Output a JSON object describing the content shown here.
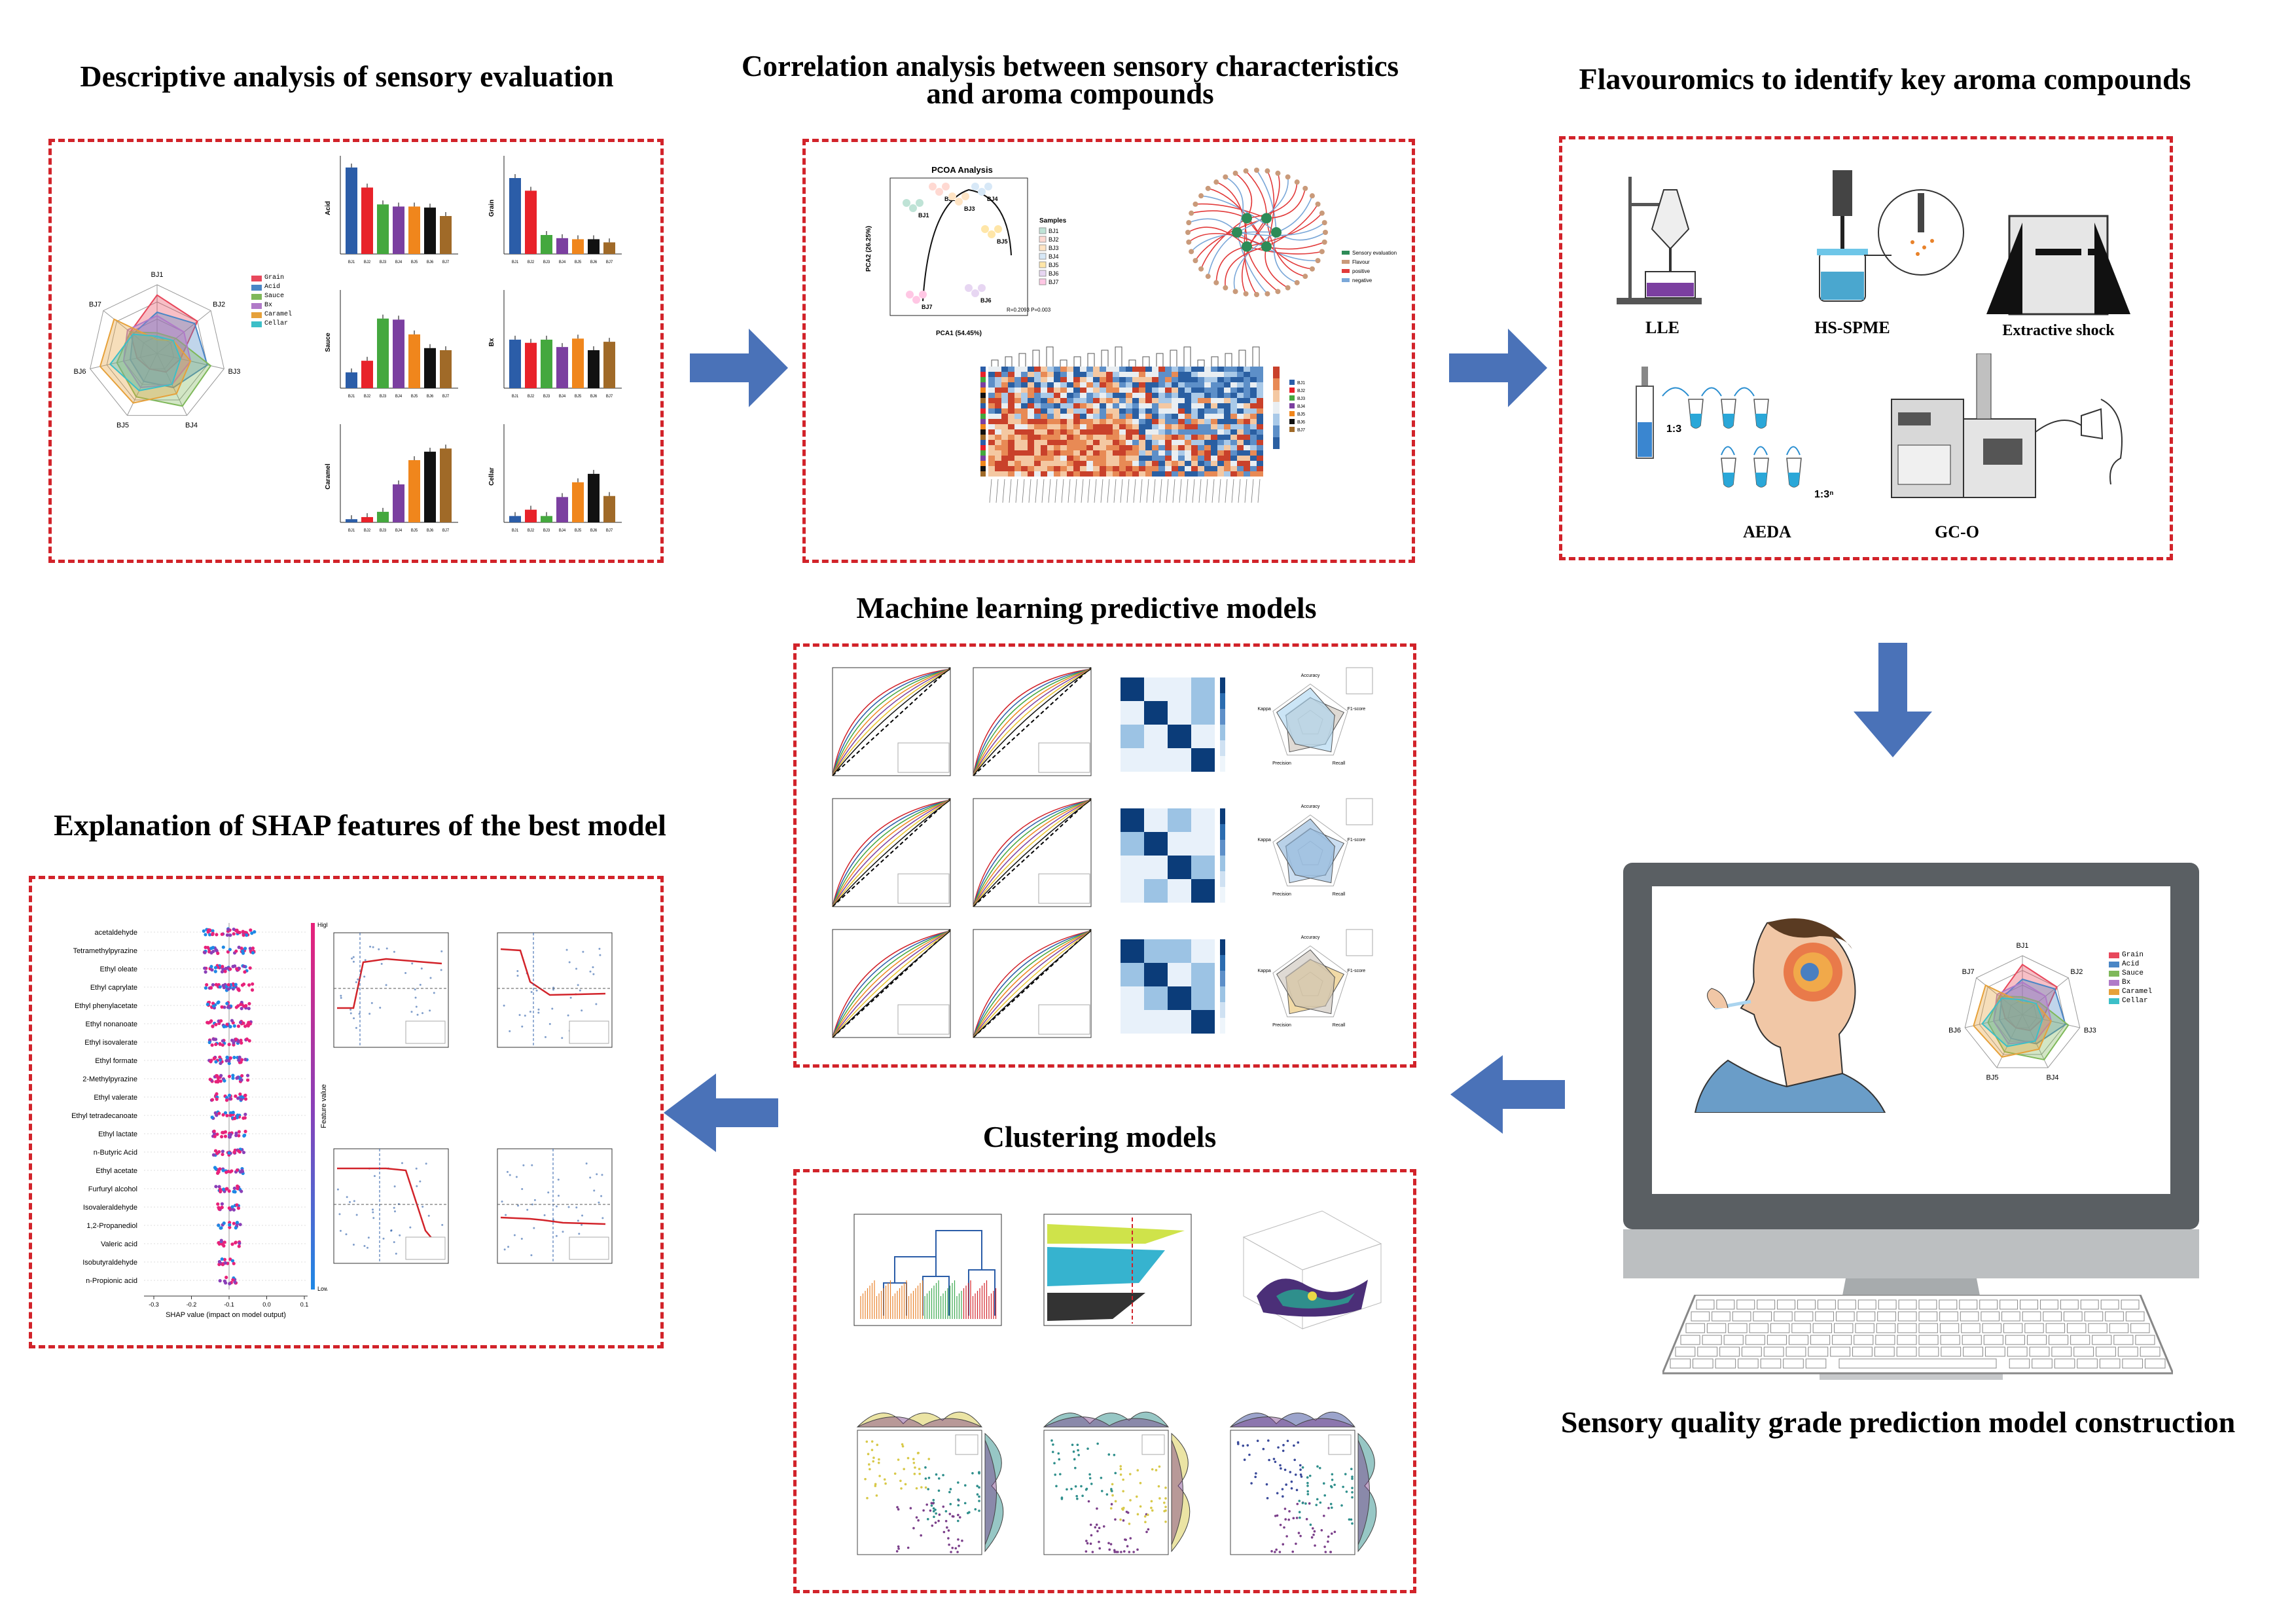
{
  "titles": {
    "sensory": "Descriptive analysis of sensory evaluation",
    "correlation": "Correlation analysis between sensory characteristics and aroma compounds",
    "flavouromics": "Flavouromics to identify key aroma compounds",
    "ml": "Machine learning predictive models",
    "shap": "Explanation of SHAP features of the best model",
    "clustering": "Clustering models",
    "prediction": "Sensory quality grade prediction model construction"
  },
  "flavouromics": {
    "lle": "LLE",
    "hs_spme": "HS-SPME",
    "extractive_shock": "Extractive shock",
    "aeda": "AEDA",
    "gc_o": "GC-O",
    "ratio1": "1:3",
    "ratio2": "1:3ⁿ"
  },
  "samples": [
    "BJ1",
    "BJ2",
    "BJ3",
    "BJ4",
    "BJ5",
    "BJ6",
    "BJ7"
  ],
  "radar_legend": [
    "Grain",
    "Acid",
    "Sauce",
    "Bx",
    "Caramel",
    "Cellar"
  ],
  "colors": {
    "grain": "#e8485c",
    "acid": "#4a86c6",
    "sauce": "#7fb85a",
    "bx": "#b07ac8",
    "caramel": "#e6a13a",
    "cellar": "#3cbfc8",
    "border": "#d2232a",
    "arrow": "#4a72b8"
  },
  "bar_panels": [
    {
      "label": "Acid",
      "values": [
        8.2,
        6.3,
        4.7,
        4.5,
        4.5,
        4.4,
        3.6
      ]
    },
    {
      "label": "Grain",
      "values": [
        7.2,
        6.0,
        1.8,
        1.5,
        1.4,
        1.4,
        1.1
      ]
    },
    {
      "label": "Sauce",
      "values": [
        1.5,
        2.6,
        6.6,
        6.5,
        5.1,
        3.8,
        3.6
      ]
    },
    {
      "label": "Bx",
      "values": [
        4.6,
        4.3,
        4.6,
        3.9,
        4.7,
        3.6,
        4.4
      ]
    },
    {
      "label": "Caramel",
      "values": [
        0.3,
        0.5,
        1.0,
        3.6,
        5.9,
        6.7,
        7.0
      ]
    },
    {
      "label": "Cellar",
      "values": [
        0.6,
        1.2,
        0.6,
        2.4,
        3.8,
        4.6,
        2.5
      ]
    }
  ],
  "pcoa": {
    "title": "PCOA Analysis",
    "xlabel": "PCA1 (54.45%)",
    "ylabel": "PCA2 (26.25%)",
    "stats": "R=0.2093  P=0.003",
    "legend_title": "Samples"
  },
  "network_legend": [
    "Sensory evaluation",
    "Flavour",
    "positive",
    "negative"
  ],
  "shap": {
    "features": [
      "acetaldehyde",
      "Tetramethylpyrazine",
      "Ethyl oleate",
      "Ethyl caprylate",
      "Ethyl phenylacetate",
      "Ethyl nonanoate",
      "Ethyl isovalerate",
      "Ethyl formate",
      "2-Methylpyrazine",
      "Ethyl valerate",
      "Ethyl tetradecanoate",
      "Ethyl lactate",
      "n-Butyric Acid",
      "Ethyl acetate",
      "Furfuryl alcohol",
      "Isovaleraldehyde",
      "1,2-Propanediol",
      "Valeric acid",
      "Isobutyraldehyde",
      "n-Propionic acid"
    ],
    "xlabel": "SHAP value (impact on model output)",
    "colorbar_label": "Feature value",
    "high": "High",
    "low": "Low",
    "ticks": [
      "-0.3",
      "-0.2",
      "-0.1",
      "0.0",
      "0.1"
    ]
  },
  "radar_axes": [
    "BJ1",
    "BJ2",
    "BJ3",
    "BJ4",
    "BJ5",
    "BJ6",
    "BJ7"
  ],
  "ml_radar_axes": [
    "Accuracy",
    "F1-score",
    "Recall",
    "Precision",
    "Kappa"
  ]
}
